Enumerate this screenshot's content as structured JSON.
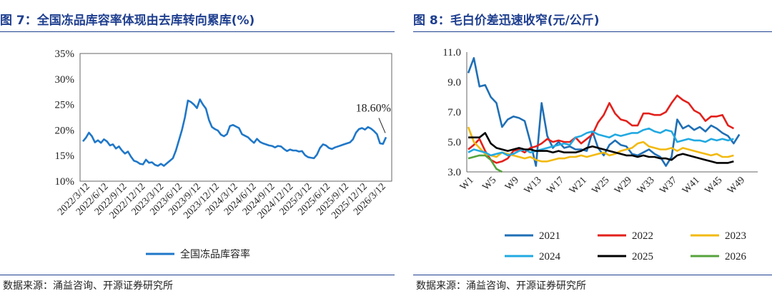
{
  "left": {
    "title": "图 7：全国冻品库容率体现由去库转向累库(%)",
    "source": "数据来源：涌益咨询、开源证券研究所",
    "chart_data": {
      "type": "line",
      "title": "全国冻品库容率体现由去库转向累库(%)",
      "ylim": [
        10,
        35
      ],
      "y_ticks": [
        "10%",
        "15%",
        "20%",
        "25%",
        "30%",
        "35%"
      ],
      "x_ticks": [
        "2022/3/12",
        "2022/6/12",
        "2022/9/12",
        "2022/12/12",
        "2023/3/12",
        "2023/6/12",
        "2023/9/12",
        "2023/12/12",
        "2024/3/12",
        "2024/6/12",
        "2024/9/12",
        "2024/12/12",
        "2025/3/12",
        "2025/6/12",
        "2025/9/12",
        "2025/12/12",
        "2026/3/12"
      ],
      "annotation": "18.60%",
      "series": [
        {
          "name": "全国冻品库容率",
          "color": "#1f77c8",
          "values": [
            17.8,
            18.5,
            19.5,
            18.8,
            17.6,
            18.0,
            17.5,
            18.2,
            17.8,
            17.0,
            17.2,
            16.4,
            16.8,
            16.0,
            15.4,
            15.8,
            14.8,
            14.0,
            13.8,
            13.4,
            13.3,
            14.2,
            13.6,
            13.7,
            13.2,
            13.0,
            13.4,
            13.0,
            13.5,
            14.0,
            14.5,
            16.0,
            18.0,
            20.0,
            22.5,
            25.8,
            25.5,
            25.0,
            24.3,
            26.0,
            25.0,
            24.2,
            22.0,
            20.6,
            20.2,
            19.9,
            19.1,
            18.8,
            19.2,
            20.8,
            21.0,
            20.7,
            20.4,
            19.2,
            18.9,
            18.6,
            18.0,
            17.5,
            18.3,
            17.7,
            17.4,
            17.2,
            17.0,
            16.9,
            16.6,
            16.9,
            16.8,
            16.3,
            15.9,
            16.2,
            16.0,
            16.0,
            15.8,
            15.9,
            15.1,
            14.7,
            14.6,
            14.5,
            15.2,
            16.5,
            17.2,
            17.0,
            16.5,
            16.3,
            16.6,
            16.8,
            17.0,
            17.2,
            17.4,
            17.6,
            18.2,
            19.5,
            20.2,
            20.4,
            20.1,
            20.6,
            20.3,
            19.8,
            19.2,
            17.4,
            17.3,
            18.6
          ]
        }
      ],
      "legend": [
        "全国冻品库容率"
      ]
    }
  },
  "right": {
    "title": "图 8：毛白价差迅速收窄(元/公斤)",
    "source": "数据来源：涌益咨询、开源证券研究所",
    "chart_data": {
      "type": "line",
      "title": "毛白价差迅速收窄(元/公斤)",
      "ylim": [
        3.0,
        11.0
      ],
      "y_ticks": [
        "3.0",
        "5.0",
        "7.0",
        "9.0",
        "11.0"
      ],
      "x_ticks": [
        "W1",
        "W5",
        "W9",
        "W13",
        "W17",
        "W21",
        "W25",
        "W29",
        "W33",
        "W37",
        "W41",
        "W45",
        "W49"
      ],
      "legend": [
        "2021",
        "2022",
        "2023",
        "2024",
        "2025",
        "2026"
      ],
      "series": [
        {
          "name": "2021",
          "color": "#1f6fb5",
          "values": [
            9.6,
            10.6,
            8.7,
            8.8,
            8.0,
            7.6,
            6.0,
            6.5,
            6.7,
            6.6,
            6.4,
            5.0,
            3.4,
            7.6,
            5.4,
            4.6,
            5.0,
            4.6,
            4.7,
            4.5,
            4.5,
            4.4,
            5.7,
            4.6,
            4.1,
            4.8,
            5.1,
            4.8,
            4.7,
            4.2,
            4.1,
            4.3,
            4.5,
            4.2,
            4.0,
            3.4,
            4.0,
            6.5,
            5.9,
            6.1,
            5.8,
            6.0,
            5.7,
            6.1,
            5.9,
            5.6,
            5.4,
            4.9,
            5.5
          ]
        },
        {
          "name": "2022",
          "color": "#e3201b",
          "values": [
            4.5,
            4.8,
            5.2,
            4.4,
            3.8,
            3.6,
            3.7,
            3.9,
            4.4,
            4.5,
            4.3,
            4.6,
            4.7,
            4.9,
            5.2,
            5.0,
            5.1,
            5.0,
            5.0,
            5.3,
            4.9,
            5.2,
            5.5,
            6.3,
            6.8,
            7.6,
            6.9,
            6.5,
            6.4,
            6.1,
            6.1,
            6.9,
            6.9,
            6.8,
            6.8,
            7.0,
            7.6,
            8.1,
            7.8,
            7.6,
            7.1,
            6.9,
            6.4,
            6.7,
            6.7,
            6.8,
            6.1,
            5.9
          ]
        },
        {
          "name": "2023",
          "color": "#f2b90f",
          "values": [
            6.0,
            5.0,
            4.6,
            4.2,
            4.1,
            4.0,
            4.3,
            4.2,
            4.1,
            4.0,
            3.9,
            4.0,
            3.8,
            3.7,
            3.7,
            3.8,
            3.9,
            3.9,
            4.0,
            4.0,
            4.1,
            4.0,
            4.1,
            4.2,
            4.3,
            4.1,
            4.2,
            4.4,
            4.5,
            4.6,
            4.9,
            5.0,
            4.7,
            4.6,
            4.5,
            4.5,
            4.6,
            4.4,
            4.6,
            4.5,
            4.4,
            4.3,
            4.2,
            4.1,
            4.2,
            4.0,
            4.0,
            4.1
          ]
        },
        {
          "name": "2024",
          "color": "#21a9e1",
          "values": [
            4.3,
            4.5,
            4.4,
            4.3,
            4.1,
            4.2,
            4.3,
            4.1,
            4.2,
            4.4,
            4.5,
            4.3,
            4.4,
            4.5,
            4.6,
            4.7,
            4.8,
            4.9,
            4.8,
            5.3,
            5.4,
            5.6,
            5.7,
            5.5,
            5.4,
            5.3,
            5.5,
            5.4,
            5.5,
            5.6,
            5.6,
            5.8,
            5.9,
            5.7,
            5.6,
            5.8,
            5.7,
            5.0,
            5.1,
            5.2,
            5.1,
            5.1,
            5.0,
            5.2,
            5.1,
            5.2,
            5.1,
            5.2
          ]
        },
        {
          "name": "2025",
          "color": "#000000",
          "values": [
            5.3,
            5.3,
            5.3,
            5.6,
            4.9,
            4.6,
            4.5,
            4.4,
            4.5,
            4.6,
            4.5,
            4.5,
            4.4,
            4.4,
            4.4,
            4.3,
            4.4,
            4.3,
            4.3,
            4.3,
            4.4,
            4.6,
            4.7,
            4.6,
            4.5,
            4.4,
            4.3,
            4.2,
            4.1,
            4.1,
            4.0,
            4.1,
            4.0,
            4.0,
            3.9,
            3.9,
            3.8,
            4.1,
            4.2,
            4.1,
            4.0,
            3.9,
            3.8,
            3.7,
            3.6,
            3.6,
            3.6,
            3.7
          ]
        },
        {
          "name": "2026",
          "color": "#55a33b",
          "values": [
            3.9,
            4.0,
            4.1,
            4.1,
            3.8,
            3.2,
            3.0
          ]
        }
      ]
    }
  }
}
